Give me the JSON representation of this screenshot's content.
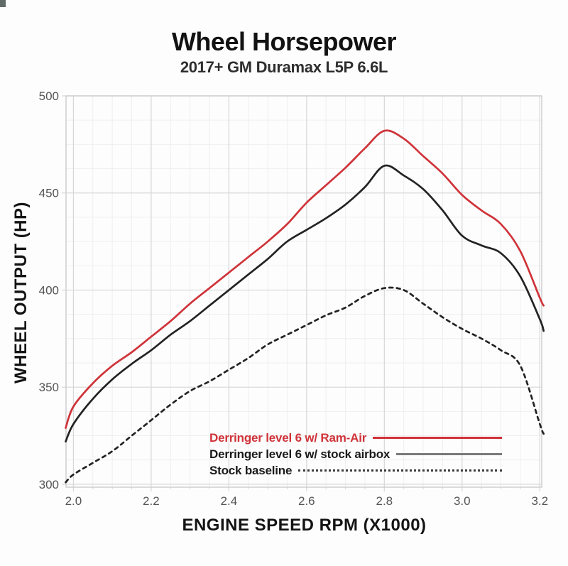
{
  "header": {
    "title": "Wheel Horsepower",
    "subtitle": "2017+ GM Duramax L5P 6.6L"
  },
  "chart_data": {
    "type": "line",
    "title": "Wheel Horsepower",
    "subtitle": "2017+ GM Duramax L5P 6.6L",
    "xlabel": "ENGINE SPEED RPM (X1000)",
    "ylabel": "WHEEL OUTPUT (HP)",
    "xlim": [
      1.981,
      3.205
    ],
    "ylim": [
      298.5,
      500
    ],
    "x_tick_values": [
      2.0,
      2.2,
      2.4,
      2.6,
      2.8,
      3.0,
      3.2
    ],
    "x_tick_labels": [
      "2.0",
      "2.2",
      "2.4",
      "2.6",
      "2.8",
      "3.0",
      "3.2"
    ],
    "y_tick_values": [
      300,
      350,
      400,
      450,
      500
    ],
    "y_tick_labels": [
      "300",
      "350",
      "400",
      "450",
      "500"
    ],
    "x_minor_step": 0.05,
    "y_minor_step": 12.5,
    "grid": true,
    "legend_position": "inside-bottom-right",
    "x": [
      1.98,
      2.0,
      2.05,
      2.1,
      2.15,
      2.2,
      2.25,
      2.3,
      2.35,
      2.4,
      2.45,
      2.5,
      2.55,
      2.6,
      2.65,
      2.7,
      2.75,
      2.8,
      2.85,
      2.9,
      2.95,
      3.0,
      3.05,
      3.1,
      3.15,
      3.2,
      3.21
    ],
    "series": [
      {
        "name": "Derringer level 6 w/ Ram-Air",
        "color": "#cf3339",
        "style": "solid",
        "values": [
          329,
          340,
          352,
          361,
          368,
          376,
          384,
          393,
          401,
          409,
          417,
          425,
          434,
          445,
          454,
          463,
          473,
          482,
          478,
          469,
          460,
          449,
          441,
          434,
          420,
          396,
          392
        ]
      },
      {
        "name": "Derringer level 6 w/ stock airbox",
        "color": "#232323",
        "style": "solid",
        "values": [
          322,
          331,
          344,
          354,
          362,
          369,
          377,
          384,
          392,
          400,
          408,
          416,
          425,
          431,
          437,
          444,
          453,
          464,
          459,
          452,
          441,
          428,
          423,
          419,
          407,
          385,
          379
        ]
      },
      {
        "name": "Stock baseline",
        "color": "#232323",
        "style": "dashed",
        "values": [
          301,
          305,
          311,
          317,
          325,
          333,
          341,
          348,
          353,
          359,
          365,
          372,
          377,
          382,
          387,
          391,
          397,
          401,
          400,
          393,
          386,
          380,
          375,
          369,
          361,
          331,
          326
        ]
      }
    ]
  },
  "style_colors": {
    "grid_major": "#d7d7d7",
    "grid_minor": "#efefef",
    "axis_border": "#cccccc",
    "tick_label": "#555555"
  }
}
